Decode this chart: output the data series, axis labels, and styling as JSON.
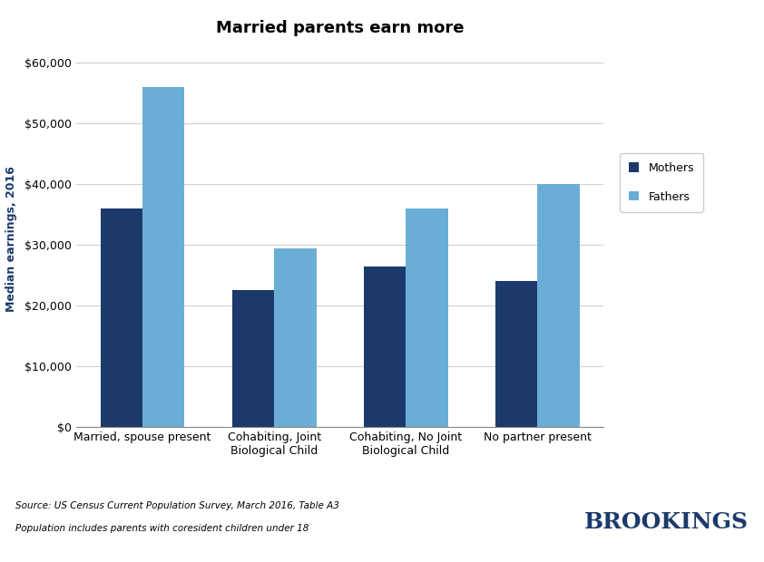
{
  "title": "Married parents earn more",
  "categories": [
    "Married, spouse present",
    "Cohabiting, Joint\nBiological Child",
    "Cohabiting, No Joint\nBiological Child",
    "No partner present"
  ],
  "mothers": [
    36000,
    22500,
    26500,
    24000
  ],
  "fathers": [
    56000,
    29500,
    36000,
    40000
  ],
  "mother_color": "#1b3a6b",
  "father_color": "#6aaed6",
  "ylabel": "Median earnings, 2016",
  "ylim": [
    0,
    62000
  ],
  "yticks": [
    0,
    10000,
    20000,
    30000,
    40000,
    50000,
    60000
  ],
  "legend_labels": [
    "Mothers",
    "Fathers"
  ],
  "source_line1": "Source: US Census Current Population Survey, March 2016, Table A3",
  "source_line2": "Population includes parents with coresident children under 18",
  "brookings_text": "BROOKINGS",
  "background_color": "#ffffff",
  "bar_width": 0.32,
  "title_fontsize": 13,
  "axis_label_fontsize": 9,
  "tick_fontsize": 9,
  "legend_fontsize": 9,
  "source_fontsize": 7.5,
  "brookings_fontsize": 18
}
